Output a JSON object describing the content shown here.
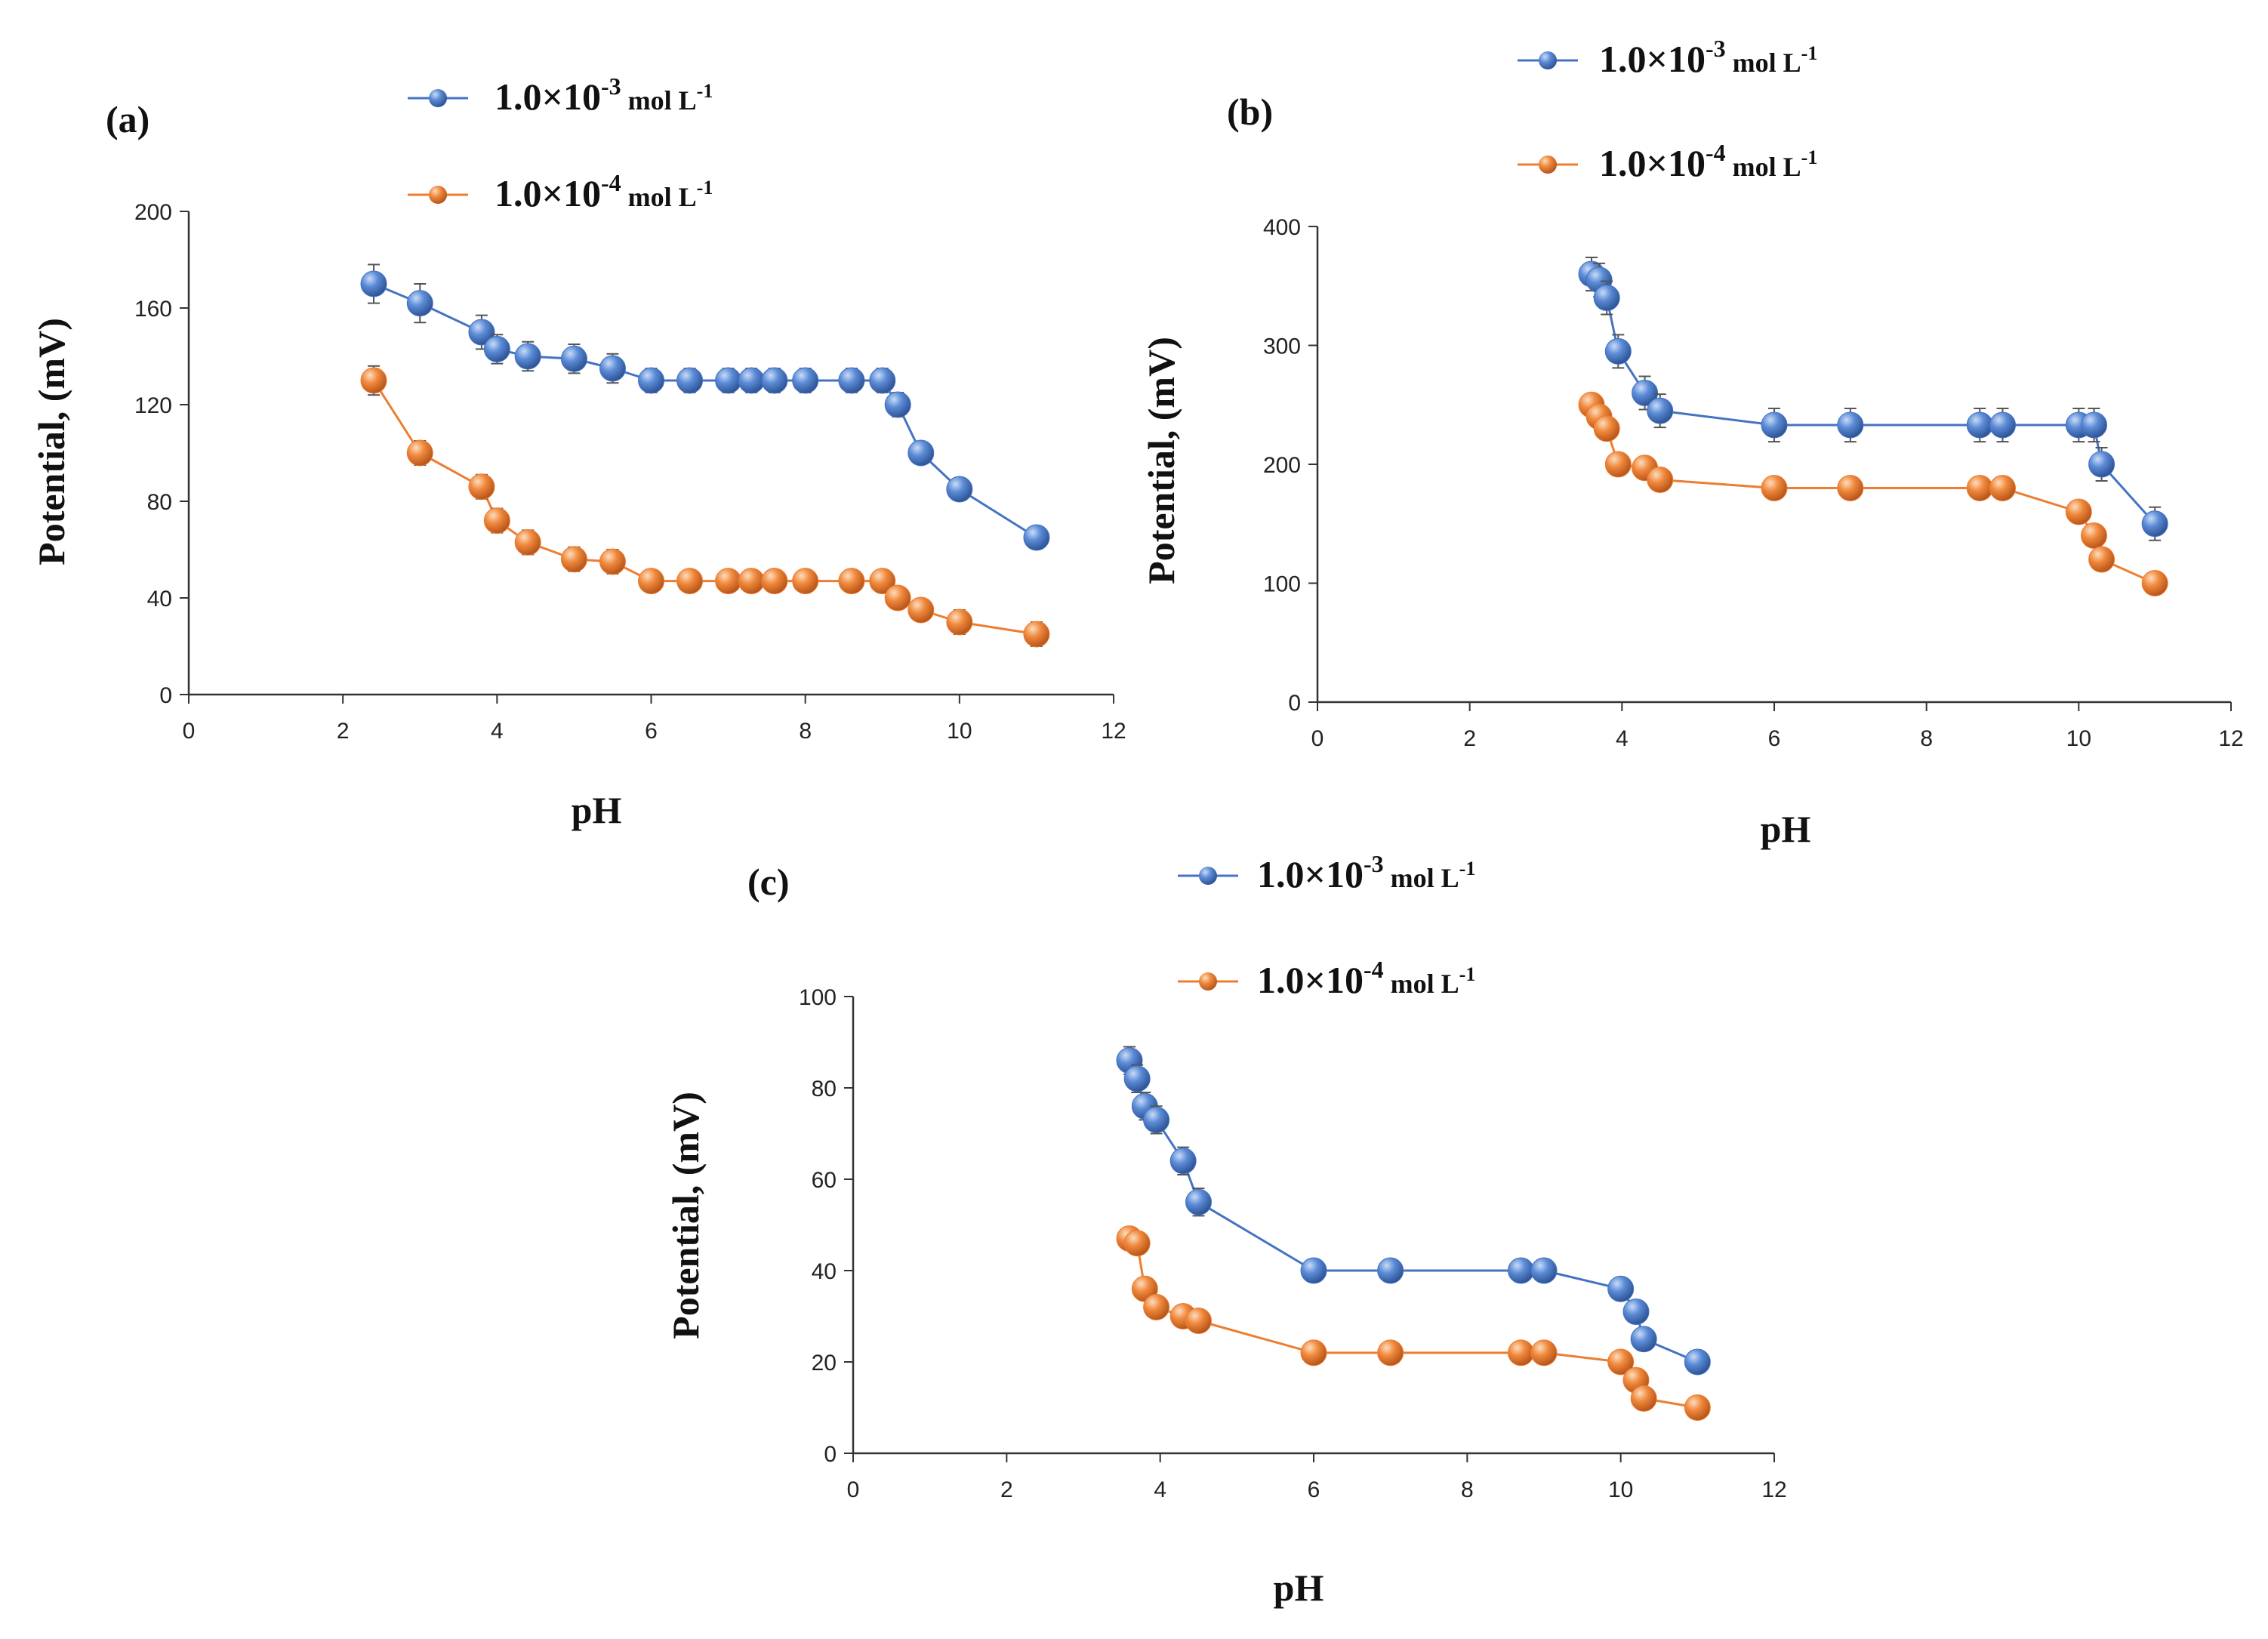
{
  "colors": {
    "series_1e3": "#4472C4",
    "series_1e3_light": "#8FB1E8",
    "series_1e4": "#ED7D31",
    "series_1e4_light": "#F8C08E",
    "axis": "#333333",
    "errorbar": "#555555"
  },
  "legend": {
    "s1": {
      "base": "1.0×10",
      "exp": "-3",
      "unit": " mol L",
      "unit_exp": "-1"
    },
    "s2": {
      "base": "1.0×10",
      "exp": "-4",
      "unit": " mol L",
      "unit_exp": "-1"
    }
  },
  "chart_data": [
    {
      "type": "line",
      "panel_label": "(a)",
      "xlabel": "pH",
      "ylabel": "Potential, (mV)",
      "xlim": [
        0,
        12
      ],
      "ylim": [
        0,
        200
      ],
      "xticks": [
        0,
        2,
        4,
        6,
        8,
        10,
        12
      ],
      "yticks": [
        0,
        40,
        80,
        120,
        160,
        200
      ],
      "series": [
        {
          "name": "1.0×10-3 mol L-1",
          "x": [
            2.4,
            3.0,
            3.8,
            4.0,
            4.4,
            5.0,
            5.5,
            6.0,
            6.5,
            7.0,
            7.3,
            7.6,
            8.0,
            8.6,
            9.0,
            9.2,
            9.5,
            10.0,
            11.0
          ],
          "y": [
            170,
            162,
            150,
            143,
            140,
            139,
            135,
            130,
            130,
            130,
            130,
            130,
            130,
            130,
            130,
            120,
            100,
            85,
            65
          ],
          "err": [
            8,
            8,
            7,
            6,
            6,
            6,
            6,
            5,
            5,
            5,
            5,
            5,
            5,
            5,
            5,
            5,
            4,
            4,
            3
          ]
        },
        {
          "name": "1.0×10-4 mol L-1",
          "x": [
            2.4,
            3.0,
            3.8,
            4.0,
            4.4,
            5.0,
            5.5,
            6.0,
            6.5,
            7.0,
            7.3,
            7.6,
            8.0,
            8.6,
            9.0,
            9.2,
            9.5,
            10.0,
            11.0
          ],
          "y": [
            130,
            100,
            86,
            72,
            63,
            56,
            55,
            47,
            47,
            47,
            47,
            47,
            47,
            47,
            47,
            40,
            35,
            30,
            25
          ],
          "err": [
            6,
            5,
            5,
            5,
            5,
            5,
            5,
            4,
            4,
            4,
            4,
            4,
            4,
            4,
            4,
            4,
            4,
            5,
            5
          ]
        }
      ]
    },
    {
      "type": "line",
      "panel_label": "(b)",
      "xlabel": "pH",
      "ylabel": "Potential, (mV)",
      "xlim": [
        0,
        12
      ],
      "ylim": [
        0,
        400
      ],
      "xticks": [
        0,
        2,
        4,
        6,
        8,
        10,
        12
      ],
      "yticks": [
        0,
        100,
        200,
        300,
        400
      ],
      "series": [
        {
          "name": "1.0×10-3 mol L-1",
          "x": [
            3.6,
            3.7,
            3.8,
            3.95,
            4.3,
            4.5,
            6.0,
            7.0,
            8.7,
            9.0,
            10.0,
            10.2,
            10.3,
            11.0
          ],
          "y": [
            360,
            355,
            340,
            295,
            260,
            245,
            233,
            233,
            233,
            233,
            233,
            233,
            200,
            150
          ],
          "err": [
            14,
            14,
            14,
            14,
            14,
            14,
            14,
            14,
            14,
            14,
            14,
            14,
            14,
            14
          ]
        },
        {
          "name": "1.0×10-4 mol L-1",
          "x": [
            3.6,
            3.7,
            3.8,
            3.95,
            4.3,
            4.5,
            6.0,
            7.0,
            8.7,
            9.0,
            10.0,
            10.2,
            10.3,
            11.0
          ],
          "y": [
            250,
            240,
            230,
            200,
            197,
            187,
            180,
            180,
            180,
            180,
            160,
            140,
            120,
            100
          ],
          "err": [
            6,
            6,
            6,
            6,
            6,
            6,
            5,
            5,
            5,
            5,
            5,
            5,
            5,
            5
          ]
        }
      ]
    },
    {
      "type": "line",
      "panel_label": "(c)",
      "xlabel": "pH",
      "ylabel": "Potential, (mV)",
      "xlim": [
        0,
        12
      ],
      "ylim": [
        0,
        100
      ],
      "xticks": [
        0,
        2,
        4,
        6,
        8,
        10,
        12
      ],
      "yticks": [
        0,
        20,
        40,
        60,
        80,
        100
      ],
      "series": [
        {
          "name": "1.0×10-3 mol L-1",
          "x": [
            3.6,
            3.7,
            3.8,
            3.95,
            4.3,
            4.5,
            6.0,
            7.0,
            8.7,
            9.0,
            10.0,
            10.2,
            10.3,
            11.0
          ],
          "y": [
            86,
            82,
            76,
            73,
            64,
            55,
            40,
            40,
            40,
            40,
            36,
            31,
            25,
            20
          ],
          "err": [
            3,
            3,
            3,
            3,
            3,
            3,
            2,
            2,
            2,
            2,
            2,
            2,
            2,
            2
          ]
        },
        {
          "name": "1.0×10-4 mol L-1",
          "x": [
            3.6,
            3.7,
            3.8,
            3.95,
            4.3,
            4.5,
            6.0,
            7.0,
            8.7,
            9.0,
            10.0,
            10.2,
            10.3,
            11.0
          ],
          "y": [
            47,
            46,
            36,
            32,
            30,
            29,
            22,
            22,
            22,
            22,
            20,
            16,
            12,
            10
          ],
          "err": [
            2,
            2,
            2,
            2,
            2,
            2,
            2,
            2,
            2,
            2,
            2,
            2,
            2,
            2
          ]
        }
      ]
    }
  ]
}
